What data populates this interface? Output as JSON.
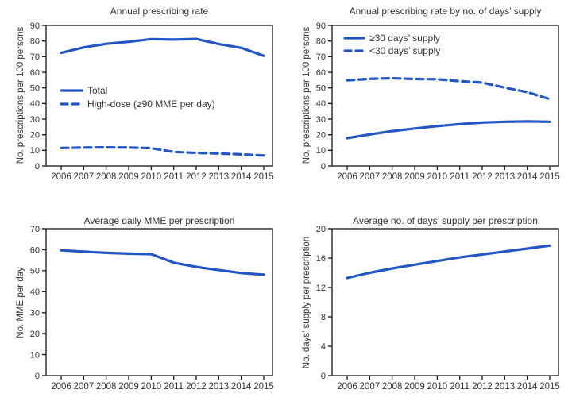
{
  "colors": {
    "line_blue": "#2255c5",
    "axis": "#151515",
    "text": "#333333",
    "background": "#ffffff"
  },
  "chart_data": [
    {
      "id": "annual-prescribing-rate",
      "type": "line",
      "title": "Annual prescribing rate",
      "xlabel": "",
      "ylabel": "No. prescriptions per 100 persons",
      "x": [
        "2006",
        "2007",
        "2008",
        "2009",
        "2010",
        "2011",
        "2012",
        "2013",
        "2014",
        "2015"
      ],
      "ylim": [
        0,
        90
      ],
      "yticks": [
        0,
        10,
        20,
        30,
        40,
        50,
        60,
        70,
        80,
        90
      ],
      "grid": false,
      "legend": true,
      "legend_position": "center-left",
      "series": [
        {
          "name": "Total",
          "style": "solid",
          "values": [
            72.4,
            75.9,
            78.2,
            79.5,
            81.2,
            80.9,
            81.3,
            78.1,
            75.6,
            70.6
          ]
        },
        {
          "name": "High-dose (≥90 MME per day)",
          "style": "dashed",
          "values": [
            11.5,
            11.8,
            11.9,
            11.8,
            11.4,
            9.0,
            8.4,
            8.0,
            7.4,
            6.7
          ]
        }
      ]
    },
    {
      "id": "annual-prescribing-rate-by-days-supply",
      "type": "line",
      "title": "Annual prescribing rate by no. of days’ supply",
      "xlabel": "",
      "ylabel": "No. prescriptions per 100 persons",
      "x": [
        "2006",
        "2007",
        "2008",
        "2009",
        "2010",
        "2011",
        "2012",
        "2013",
        "2014",
        "2015"
      ],
      "ylim": [
        0,
        90
      ],
      "yticks": [
        0,
        10,
        20,
        30,
        40,
        50,
        60,
        70,
        80,
        90
      ],
      "grid": false,
      "legend": true,
      "legend_position": "top-left",
      "series": [
        {
          "name": "≥30 days’ supply",
          "style": "solid",
          "values": [
            17.8,
            20.2,
            22.3,
            24.0,
            25.5,
            26.8,
            27.8,
            28.3,
            28.5,
            28.3
          ]
        },
        {
          "name": "<30 days’ supply",
          "style": "dashed",
          "values": [
            54.8,
            55.8,
            56.2,
            55.7,
            55.5,
            54.3,
            53.4,
            50.2,
            47.3,
            42.8
          ]
        }
      ]
    },
    {
      "id": "average-daily-mme-per-prescription",
      "type": "line",
      "title": "Average daily MME per prescription",
      "xlabel": "",
      "ylabel": "No. MME per day",
      "x": [
        "2006",
        "2007",
        "2008",
        "2009",
        "2010",
        "2011",
        "2012",
        "2013",
        "2014",
        "2015"
      ],
      "ylim": [
        0,
        70
      ],
      "yticks": [
        0,
        10,
        20,
        30,
        40,
        50,
        60,
        70
      ],
      "grid": false,
      "legend": false,
      "series": [
        {
          "style": "solid",
          "values": [
            59.7,
            59.1,
            58.5,
            58.1,
            57.9,
            53.8,
            51.8,
            50.3,
            48.9,
            48.1
          ]
        }
      ]
    },
    {
      "id": "average-days-supply-per-prescription",
      "type": "line",
      "title": "Average no. of days’ supply per prescription",
      "xlabel": "",
      "ylabel": "No. days’ supply per prescription",
      "x": [
        "2006",
        "2007",
        "2008",
        "2009",
        "2010",
        "2011",
        "2012",
        "2013",
        "2014",
        "2015"
      ],
      "ylim": [
        0,
        20
      ],
      "yticks": [
        0,
        4,
        8,
        12,
        16,
        20
      ],
      "grid": false,
      "legend": false,
      "series": [
        {
          "style": "solid",
          "values": [
            13.3,
            14.0,
            14.6,
            15.1,
            15.6,
            16.1,
            16.5,
            16.9,
            17.3,
            17.7
          ]
        }
      ]
    }
  ]
}
